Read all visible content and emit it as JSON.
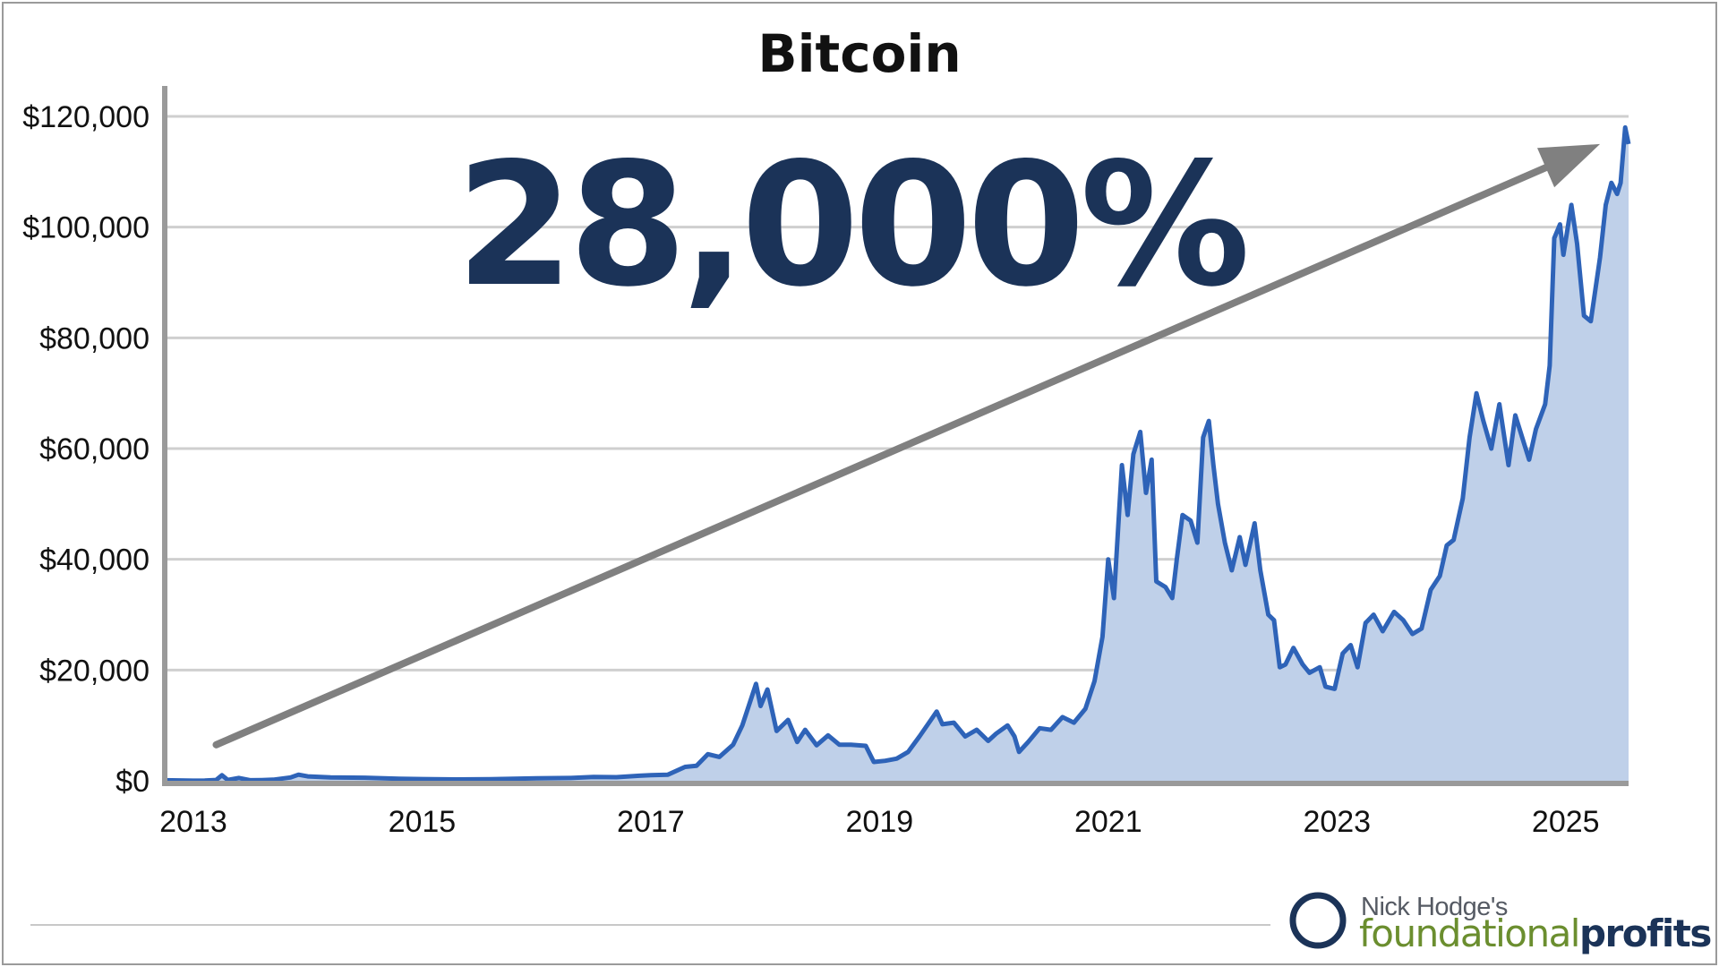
{
  "colors": {
    "line": "#2e63b8",
    "area": "#bfd0e9",
    "grid": "#cfcfcf",
    "axis": "#9a9a9a",
    "arrow": "#808080",
    "headline": "#1b3358",
    "logo_green": "#6b8e2f",
    "logo_navy": "#1b3358"
  },
  "headline": "28,000%",
  "logo": {
    "icon": "circle-swoosh-icon",
    "small_text": "Nick Hodge's",
    "brand_part1": "foundational",
    "brand_part2": "profits"
  },
  "chart_data": {
    "type": "area",
    "title": "Bitcoin",
    "xlabel": "",
    "ylabel": "",
    "x_ticks": [
      "2013",
      "2015",
      "2017",
      "2019",
      "2021",
      "2023",
      "2025"
    ],
    "y_ticks": [
      "$0",
      "$20,000",
      "$40,000",
      "$60,000",
      "$80,000",
      "$100,000",
      "$120,000"
    ],
    "xlim": [
      2012.75,
      2025.55
    ],
    "ylim": [
      0,
      120000
    ],
    "grid": "horizontal",
    "legend": "none",
    "annotation": {
      "type": "arrow",
      "text": "28,000%",
      "from": [
        2013.2,
        6500
      ],
      "to": [
        2025.3,
        115000
      ]
    },
    "series": [
      {
        "values": [
          [
            2012.75,
            100
          ],
          [
            2013.0,
            13
          ],
          [
            2013.1,
            30
          ],
          [
            2013.2,
            140
          ],
          [
            2013.25,
            1000
          ],
          [
            2013.3,
            150
          ],
          [
            2013.4,
            500
          ],
          [
            2013.5,
            100
          ],
          [
            2013.6,
            130
          ],
          [
            2013.7,
            200
          ],
          [
            2013.85,
            600
          ],
          [
            2013.92,
            1100
          ],
          [
            2014.0,
            800
          ],
          [
            2014.2,
            600
          ],
          [
            2014.5,
            550
          ],
          [
            2014.8,
            350
          ],
          [
            2015.0,
            300
          ],
          [
            2015.3,
            250
          ],
          [
            2015.6,
            280
          ],
          [
            2015.9,
            400
          ],
          [
            2016.0,
            430
          ],
          [
            2016.3,
            500
          ],
          [
            2016.5,
            700
          ],
          [
            2016.7,
            650
          ],
          [
            2016.9,
            900
          ],
          [
            2017.0,
            1000
          ],
          [
            2017.15,
            1100
          ],
          [
            2017.3,
            2500
          ],
          [
            2017.4,
            2700
          ],
          [
            2017.5,
            4800
          ],
          [
            2017.6,
            4300
          ],
          [
            2017.72,
            6500
          ],
          [
            2017.8,
            10000
          ],
          [
            2017.92,
            17500
          ],
          [
            2017.96,
            13500
          ],
          [
            2018.02,
            16500
          ],
          [
            2018.1,
            9000
          ],
          [
            2018.2,
            11000
          ],
          [
            2018.28,
            7000
          ],
          [
            2018.35,
            9200
          ],
          [
            2018.45,
            6400
          ],
          [
            2018.55,
            8200
          ],
          [
            2018.65,
            6500
          ],
          [
            2018.75,
            6500
          ],
          [
            2018.88,
            6300
          ],
          [
            2018.95,
            3400
          ],
          [
            2019.05,
            3600
          ],
          [
            2019.15,
            4000
          ],
          [
            2019.25,
            5200
          ],
          [
            2019.35,
            8000
          ],
          [
            2019.45,
            11000
          ],
          [
            2019.5,
            12500
          ],
          [
            2019.55,
            10200
          ],
          [
            2019.65,
            10500
          ],
          [
            2019.75,
            8000
          ],
          [
            2019.85,
            9200
          ],
          [
            2019.95,
            7200
          ],
          [
            2020.02,
            8500
          ],
          [
            2020.12,
            10000
          ],
          [
            2020.18,
            8000
          ],
          [
            2020.22,
            5200
          ],
          [
            2020.3,
            7000
          ],
          [
            2020.4,
            9500
          ],
          [
            2020.5,
            9200
          ],
          [
            2020.6,
            11500
          ],
          [
            2020.7,
            10500
          ],
          [
            2020.8,
            13000
          ],
          [
            2020.88,
            18000
          ],
          [
            2020.95,
            26000
          ],
          [
            2021.0,
            40000
          ],
          [
            2021.05,
            33000
          ],
          [
            2021.12,
            57000
          ],
          [
            2021.17,
            48000
          ],
          [
            2021.22,
            59000
          ],
          [
            2021.28,
            63000
          ],
          [
            2021.33,
            52000
          ],
          [
            2021.38,
            58000
          ],
          [
            2021.42,
            36000
          ],
          [
            2021.5,
            35000
          ],
          [
            2021.56,
            33000
          ],
          [
            2021.6,
            40000
          ],
          [
            2021.65,
            48000
          ],
          [
            2021.72,
            47000
          ],
          [
            2021.78,
            43000
          ],
          [
            2021.83,
            62000
          ],
          [
            2021.88,
            65000
          ],
          [
            2021.92,
            57000
          ],
          [
            2021.96,
            50000
          ],
          [
            2022.02,
            43000
          ],
          [
            2022.08,
            38000
          ],
          [
            2022.15,
            44000
          ],
          [
            2022.2,
            39000
          ],
          [
            2022.28,
            46500
          ],
          [
            2022.33,
            38000
          ],
          [
            2022.4,
            30000
          ],
          [
            2022.45,
            29000
          ],
          [
            2022.5,
            20500
          ],
          [
            2022.55,
            21000
          ],
          [
            2022.62,
            24000
          ],
          [
            2022.7,
            21000
          ],
          [
            2022.76,
            19500
          ],
          [
            2022.85,
            20500
          ],
          [
            2022.9,
            17000
          ],
          [
            2022.98,
            16600
          ],
          [
            2023.05,
            23000
          ],
          [
            2023.12,
            24500
          ],
          [
            2023.18,
            20500
          ],
          [
            2023.25,
            28500
          ],
          [
            2023.32,
            30000
          ],
          [
            2023.4,
            27000
          ],
          [
            2023.5,
            30500
          ],
          [
            2023.58,
            29000
          ],
          [
            2023.66,
            26500
          ],
          [
            2023.74,
            27500
          ],
          [
            2023.82,
            34500
          ],
          [
            2023.9,
            37000
          ],
          [
            2023.96,
            42500
          ],
          [
            2024.02,
            43500
          ],
          [
            2024.1,
            51000
          ],
          [
            2024.16,
            62000
          ],
          [
            2024.22,
            70000
          ],
          [
            2024.28,
            65000
          ],
          [
            2024.35,
            60000
          ],
          [
            2024.42,
            68000
          ],
          [
            2024.5,
            57000
          ],
          [
            2024.56,
            66000
          ],
          [
            2024.62,
            62000
          ],
          [
            2024.68,
            58000
          ],
          [
            2024.74,
            63500
          ],
          [
            2024.82,
            68000
          ],
          [
            2024.86,
            75000
          ],
          [
            2024.9,
            98000
          ],
          [
            2024.95,
            100500
          ],
          [
            2024.98,
            95000
          ],
          [
            2025.05,
            104000
          ],
          [
            2025.1,
            97000
          ],
          [
            2025.16,
            84000
          ],
          [
            2025.22,
            83000
          ],
          [
            2025.3,
            94500
          ],
          [
            2025.35,
            104000
          ],
          [
            2025.4,
            108000
          ],
          [
            2025.45,
            106000
          ],
          [
            2025.48,
            108000
          ],
          [
            2025.52,
            118000
          ],
          [
            2025.55,
            115000
          ]
        ]
      }
    ]
  }
}
